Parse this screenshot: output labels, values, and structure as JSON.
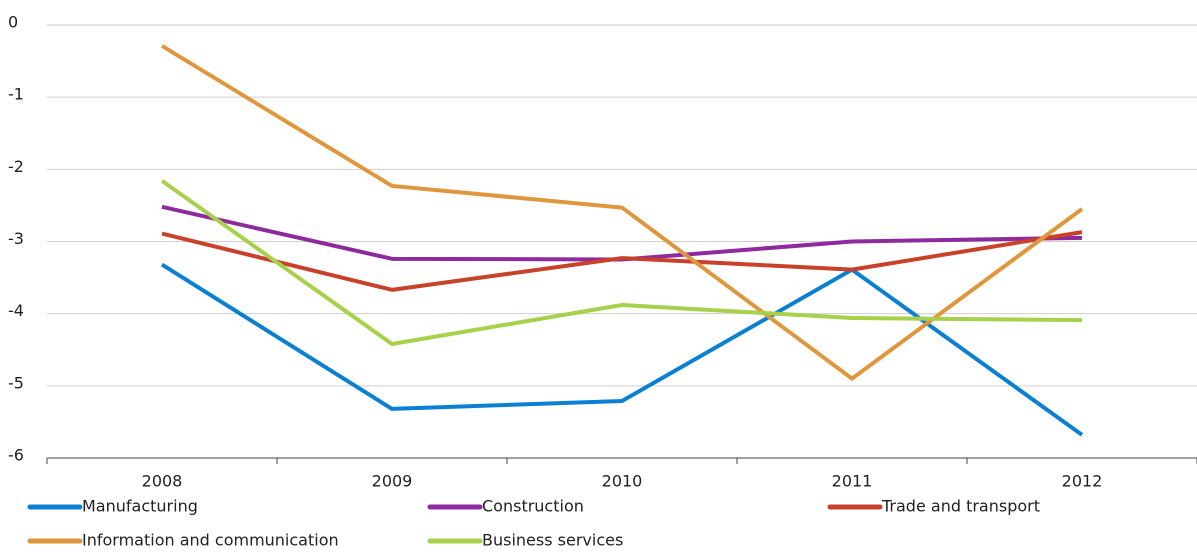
{
  "chart_data": {
    "type": "line",
    "categories": [
      "2008",
      "2009",
      "2010",
      "2011",
      "2012"
    ],
    "series": [
      {
        "name": "Manufacturing",
        "color": "#0b80d2",
        "values": [
          -3.32,
          -5.32,
          -5.21,
          -3.39,
          -5.68
        ]
      },
      {
        "name": "Construction",
        "color": "#8e2a9e",
        "values": [
          -2.52,
          -3.24,
          -3.25,
          -3.0,
          -2.95
        ]
      },
      {
        "name": "Trade and transport",
        "color": "#c8412b",
        "values": [
          -2.89,
          -3.67,
          -3.23,
          -3.39,
          -2.87
        ]
      },
      {
        "name": "Information and communication",
        "color": "#e0963d",
        "values": [
          -0.29,
          -2.23,
          -2.53,
          -4.9,
          -2.55
        ]
      },
      {
        "name": "Business services",
        "color": "#a7d04b",
        "values": [
          -2.16,
          -4.42,
          -3.88,
          -4.06,
          -4.09
        ]
      }
    ],
    "ylim": [
      -6,
      0
    ],
    "yticks": [
      -6,
      -5,
      -4,
      -3,
      -2,
      -1,
      0
    ],
    "grid": true
  }
}
